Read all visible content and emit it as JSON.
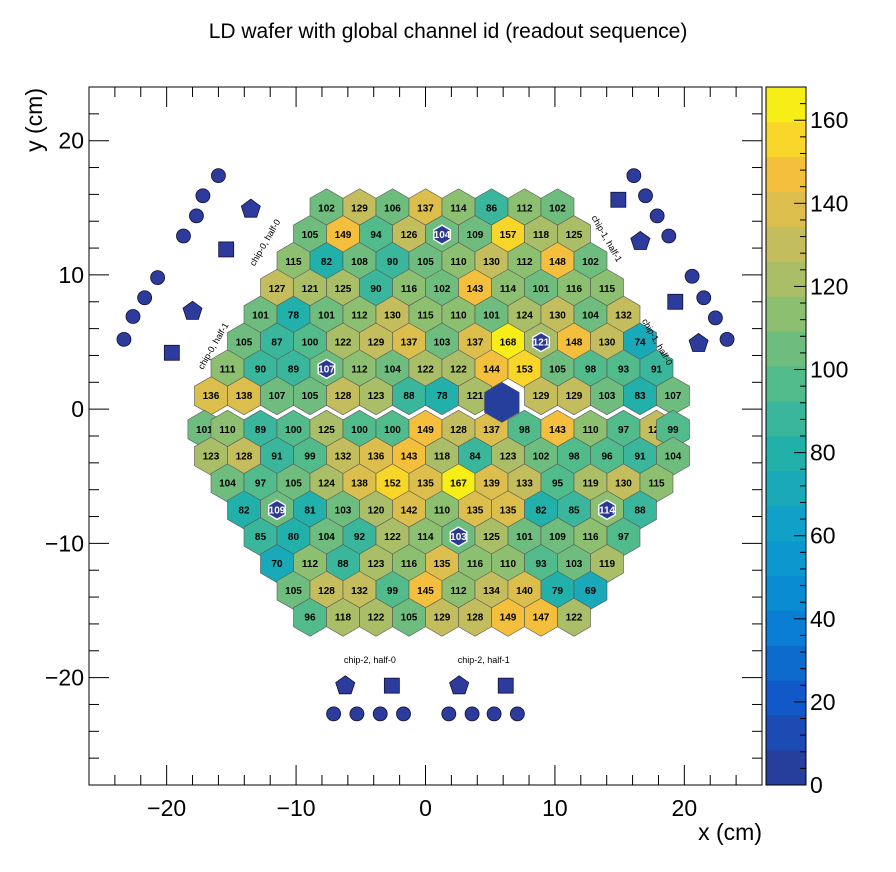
{
  "chart_data": {
    "type": "heatmap",
    "title": "LD wafer with global channel id (readout sequence)",
    "xlabel": "x (cm)",
    "ylabel": "y (cm)",
    "xlim": [
      -26,
      26
    ],
    "ylim": [
      -28,
      24
    ],
    "xticks": [
      "−20",
      "−10",
      "0",
      "10",
      "20"
    ],
    "yticks": [
      "20",
      "10",
      "0",
      "−10",
      "−20"
    ],
    "colorbar": {
      "zlim": [
        0,
        168
      ],
      "ticks": [
        "0",
        "20",
        "40",
        "60",
        "80",
        "100",
        "120",
        "140",
        "160"
      ]
    },
    "hex_grid": {
      "pitch_x": 2.55,
      "pitch_y": 1.998
    },
    "cells": [
      {
        "x": -7.65,
        "y": 15.0,
        "v": 102
      },
      {
        "x": -5.1,
        "y": 15.0,
        "v": 129
      },
      {
        "x": -2.55,
        "y": 15.0,
        "v": 106
      },
      {
        "x": 0.0,
        "y": 15.0,
        "v": 137
      },
      {
        "x": 2.55,
        "y": 15.0,
        "v": 114
      },
      {
        "x": 5.1,
        "y": 15.0,
        "v": 86
      },
      {
        "x": 7.65,
        "y": 15.0,
        "v": 112
      },
      {
        "x": 10.2,
        "y": 15.0,
        "v": 102
      },
      {
        "x": -8.925,
        "y": 13.0,
        "v": 105
      },
      {
        "x": -6.375,
        "y": 13.0,
        "v": 149
      },
      {
        "x": -3.825,
        "y": 13.0,
        "v": 94
      },
      {
        "x": -1.275,
        "y": 13.0,
        "v": 126
      },
      {
        "x": 1.275,
        "y": 13.0,
        "v": 104,
        "special": true
      },
      {
        "x": 3.825,
        "y": 13.0,
        "v": 109
      },
      {
        "x": 6.375,
        "y": 13.0,
        "v": 157
      },
      {
        "x": 8.925,
        "y": 13.0,
        "v": 118
      },
      {
        "x": 11.475,
        "y": 13.0,
        "v": 125
      },
      {
        "x": -10.2,
        "y": 11.0,
        "v": 115
      },
      {
        "x": -7.65,
        "y": 11.0,
        "v": 82
      },
      {
        "x": -5.1,
        "y": 11.0,
        "v": 108
      },
      {
        "x": -2.55,
        "y": 11.0,
        "v": 90
      },
      {
        "x": 0.0,
        "y": 11.0,
        "v": 105
      },
      {
        "x": 2.55,
        "y": 11.0,
        "v": 110
      },
      {
        "x": 5.1,
        "y": 11.0,
        "v": 130
      },
      {
        "x": 7.65,
        "y": 11.0,
        "v": 112
      },
      {
        "x": 10.2,
        "y": 11.0,
        "v": 148
      },
      {
        "x": 12.75,
        "y": 11.0,
        "v": 102
      },
      {
        "x": -11.475,
        "y": 9.0,
        "v": 127
      },
      {
        "x": -8.925,
        "y": 9.0,
        "v": 121
      },
      {
        "x": -6.375,
        "y": 9.0,
        "v": 125
      },
      {
        "x": -3.825,
        "y": 9.0,
        "v": 90
      },
      {
        "x": -1.275,
        "y": 9.0,
        "v": 116
      },
      {
        "x": 1.275,
        "y": 9.0,
        "v": 102
      },
      {
        "x": 3.825,
        "y": 9.0,
        "v": 143
      },
      {
        "x": 6.375,
        "y": 9.0,
        "v": 114
      },
      {
        "x": 8.925,
        "y": 9.0,
        "v": 101
      },
      {
        "x": 11.475,
        "y": 9.0,
        "v": 116
      },
      {
        "x": 14.025,
        "y": 9.0,
        "v": 115
      },
      {
        "x": -12.75,
        "y": 7.0,
        "v": 101
      },
      {
        "x": -10.2,
        "y": 7.0,
        "v": 78
      },
      {
        "x": -7.65,
        "y": 7.0,
        "v": 101
      },
      {
        "x": -5.1,
        "y": 7.0,
        "v": 112
      },
      {
        "x": -2.55,
        "y": 7.0,
        "v": 130
      },
      {
        "x": 0.0,
        "y": 7.0,
        "v": 115
      },
      {
        "x": 2.55,
        "y": 7.0,
        "v": 110
      },
      {
        "x": 5.1,
        "y": 7.0,
        "v": 101
      },
      {
        "x": 7.65,
        "y": 7.0,
        "v": 124
      },
      {
        "x": 10.2,
        "y": 7.0,
        "v": 130
      },
      {
        "x": 12.75,
        "y": 7.0,
        "v": 104
      },
      {
        "x": 15.3,
        "y": 7.0,
        "v": 132
      },
      {
        "x": -14.025,
        "y": 5.0,
        "v": 105
      },
      {
        "x": -11.475,
        "y": 5.0,
        "v": 87
      },
      {
        "x": -8.925,
        "y": 5.0,
        "v": 100
      },
      {
        "x": -6.375,
        "y": 5.0,
        "v": 122
      },
      {
        "x": -3.825,
        "y": 5.0,
        "v": 129
      },
      {
        "x": -1.275,
        "y": 5.0,
        "v": 137
      },
      {
        "x": 1.275,
        "y": 5.0,
        "v": 103
      },
      {
        "x": 3.825,
        "y": 5.0,
        "v": 137
      },
      {
        "x": 6.375,
        "y": 5.0,
        "v": 168
      },
      {
        "x": 8.925,
        "y": 5.0,
        "v": 121,
        "special": true
      },
      {
        "x": 11.475,
        "y": 5.0,
        "v": 148
      },
      {
        "x": 14.025,
        "y": 5.0,
        "v": 130
      },
      {
        "x": 16.575,
        "y": 5.0,
        "v": 74
      },
      {
        "x": -15.3,
        "y": 3.0,
        "v": 111
      },
      {
        "x": -12.75,
        "y": 3.0,
        "v": 90
      },
      {
        "x": -10.2,
        "y": 3.0,
        "v": 89
      },
      {
        "x": -7.65,
        "y": 3.0,
        "v": 107,
        "special": true
      },
      {
        "x": -5.1,
        "y": 3.0,
        "v": 112
      },
      {
        "x": -2.55,
        "y": 3.0,
        "v": 104
      },
      {
        "x": 0.0,
        "y": 3.0,
        "v": 122
      },
      {
        "x": 2.55,
        "y": 3.0,
        "v": 122
      },
      {
        "x": 5.1,
        "y": 3.0,
        "v": 144
      },
      {
        "x": 7.65,
        "y": 3.0,
        "v": 153
      },
      {
        "x": 10.2,
        "y": 3.0,
        "v": 105
      },
      {
        "x": 12.75,
        "y": 3.0,
        "v": 98
      },
      {
        "x": 15.3,
        "y": 3.0,
        "v": 93
      },
      {
        "x": 17.85,
        "y": 3.0,
        "v": 91
      },
      {
        "x": -16.575,
        "y": 1.0,
        "v": 136
      },
      {
        "x": -14.025,
        "y": 1.0,
        "v": 138
      },
      {
        "x": -11.475,
        "y": 1.0,
        "v": 107
      },
      {
        "x": -8.925,
        "y": 1.0,
        "v": 105
      },
      {
        "x": -6.375,
        "y": 1.0,
        "v": 128
      },
      {
        "x": -3.825,
        "y": 1.0,
        "v": 123
      },
      {
        "x": -1.275,
        "y": 1.0,
        "v": 88
      },
      {
        "x": 1.275,
        "y": 1.0,
        "v": 78
      },
      {
        "x": 3.825,
        "y": 1.0,
        "v": 121
      },
      {
        "x": 8.925,
        "y": 1.0,
        "v": 129
      },
      {
        "x": 11.475,
        "y": 1.0,
        "v": 129
      },
      {
        "x": 14.025,
        "y": 1.0,
        "v": 103
      },
      {
        "x": 16.575,
        "y": 1.0,
        "v": 83
      },
      {
        "x": 19.125,
        "y": 1.0,
        "v": 107
      },
      {
        "x": -17.085,
        "y": -1.5,
        "v": 101
      },
      {
        "x": -15.3,
        "y": -1.5,
        "v": 110
      },
      {
        "x": -12.75,
        "y": -1.5,
        "v": 89
      },
      {
        "x": -10.2,
        "y": -1.5,
        "v": 100
      },
      {
        "x": -7.65,
        "y": -1.5,
        "v": 125
      },
      {
        "x": -5.1,
        "y": -1.5,
        "v": 100
      },
      {
        "x": -2.55,
        "y": -1.5,
        "v": 100
      },
      {
        "x": 0.0,
        "y": -1.5,
        "v": 149
      },
      {
        "x": 2.55,
        "y": -1.5,
        "v": 128
      },
      {
        "x": 5.1,
        "y": -1.5,
        "v": 137
      },
      {
        "x": 7.65,
        "y": -1.5,
        "v": 98
      },
      {
        "x": 10.2,
        "y": -1.5,
        "v": 143
      },
      {
        "x": 12.75,
        "y": -1.5,
        "v": 110
      },
      {
        "x": 15.3,
        "y": -1.5,
        "v": 97
      },
      {
        "x": 17.85,
        "y": -1.5,
        "v": 128
      },
      {
        "x": 19.125,
        "y": -1.5,
        "v": 99
      },
      {
        "x": -16.575,
        "y": -3.5,
        "v": 123
      },
      {
        "x": -14.025,
        "y": -3.5,
        "v": 128
      },
      {
        "x": -11.475,
        "y": -3.5,
        "v": 91
      },
      {
        "x": -8.925,
        "y": -3.5,
        "v": 99
      },
      {
        "x": -6.375,
        "y": -3.5,
        "v": 132
      },
      {
        "x": -3.825,
        "y": -3.5,
        "v": 136
      },
      {
        "x": -1.275,
        "y": -3.5,
        "v": 143
      },
      {
        "x": 1.275,
        "y": -3.5,
        "v": 118
      },
      {
        "x": 3.825,
        "y": -3.5,
        "v": 84
      },
      {
        "x": 6.375,
        "y": -3.5,
        "v": 123
      },
      {
        "x": 8.925,
        "y": -3.5,
        "v": 102
      },
      {
        "x": 11.475,
        "y": -3.5,
        "v": 98
      },
      {
        "x": 14.025,
        "y": -3.5,
        "v": 96
      },
      {
        "x": 16.575,
        "y": -3.5,
        "v": 91
      },
      {
        "x": 19.125,
        "y": -3.5,
        "v": 104
      },
      {
        "x": -15.3,
        "y": -5.5,
        "v": 104
      },
      {
        "x": -12.75,
        "y": -5.5,
        "v": 97
      },
      {
        "x": -10.2,
        "y": -5.5,
        "v": 105
      },
      {
        "x": -7.65,
        "y": -5.5,
        "v": 124
      },
      {
        "x": -5.1,
        "y": -5.5,
        "v": 138
      },
      {
        "x": -2.55,
        "y": -5.5,
        "v": 152
      },
      {
        "x": 0.0,
        "y": -5.5,
        "v": 135
      },
      {
        "x": 2.55,
        "y": -5.5,
        "v": 167
      },
      {
        "x": 5.1,
        "y": -5.5,
        "v": 139
      },
      {
        "x": 7.65,
        "y": -5.5,
        "v": 133
      },
      {
        "x": 10.2,
        "y": -5.5,
        "v": 95
      },
      {
        "x": 12.75,
        "y": -5.5,
        "v": 119
      },
      {
        "x": 15.3,
        "y": -5.5,
        "v": 130
      },
      {
        "x": 17.85,
        "y": -5.5,
        "v": 115
      },
      {
        "x": -14.025,
        "y": -7.5,
        "v": 82
      },
      {
        "x": -11.475,
        "y": -7.5,
        "v": 109,
        "special": true
      },
      {
        "x": -8.925,
        "y": -7.5,
        "v": 81
      },
      {
        "x": -6.375,
        "y": -7.5,
        "v": 103
      },
      {
        "x": -3.825,
        "y": -7.5,
        "v": 120
      },
      {
        "x": -1.275,
        "y": -7.5,
        "v": 142
      },
      {
        "x": 1.275,
        "y": -7.5,
        "v": 110
      },
      {
        "x": 3.825,
        "y": -7.5,
        "v": 135
      },
      {
        "x": 6.375,
        "y": -7.5,
        "v": 135
      },
      {
        "x": 8.925,
        "y": -7.5,
        "v": 82
      },
      {
        "x": 11.475,
        "y": -7.5,
        "v": 85
      },
      {
        "x": 14.025,
        "y": -7.5,
        "v": 114,
        "special": true
      },
      {
        "x": 16.575,
        "y": -7.5,
        "v": 88
      },
      {
        "x": -12.75,
        "y": -9.5,
        "v": 85
      },
      {
        "x": -10.2,
        "y": -9.5,
        "v": 80
      },
      {
        "x": -7.65,
        "y": -9.5,
        "v": 104
      },
      {
        "x": -5.1,
        "y": -9.5,
        "v": 92
      },
      {
        "x": -2.55,
        "y": -9.5,
        "v": 122
      },
      {
        "x": 0.0,
        "y": -9.5,
        "v": 114
      },
      {
        "x": 2.55,
        "y": -9.5,
        "v": 103,
        "special": true
      },
      {
        "x": 5.1,
        "y": -9.5,
        "v": 125
      },
      {
        "x": 7.65,
        "y": -9.5,
        "v": 101
      },
      {
        "x": 10.2,
        "y": -9.5,
        "v": 109
      },
      {
        "x": 12.75,
        "y": -9.5,
        "v": 116
      },
      {
        "x": 15.3,
        "y": -9.5,
        "v": 97
      },
      {
        "x": -11.475,
        "y": -11.5,
        "v": 70
      },
      {
        "x": -8.925,
        "y": -11.5,
        "v": 112
      },
      {
        "x": -6.375,
        "y": -11.5,
        "v": 88
      },
      {
        "x": -3.825,
        "y": -11.5,
        "v": 123
      },
      {
        "x": -1.275,
        "y": -11.5,
        "v": 116
      },
      {
        "x": 1.275,
        "y": -11.5,
        "v": 135
      },
      {
        "x": 3.825,
        "y": -11.5,
        "v": 116
      },
      {
        "x": 6.375,
        "y": -11.5,
        "v": 110
      },
      {
        "x": 8.925,
        "y": -11.5,
        "v": 93
      },
      {
        "x": 11.475,
        "y": -11.5,
        "v": 103
      },
      {
        "x": 14.025,
        "y": -11.5,
        "v": 119
      },
      {
        "x": -10.2,
        "y": -13.5,
        "v": 105
      },
      {
        "x": -7.65,
        "y": -13.5,
        "v": 128
      },
      {
        "x": -5.1,
        "y": -13.5,
        "v": 132
      },
      {
        "x": -2.55,
        "y": -13.5,
        "v": 99
      },
      {
        "x": 0.0,
        "y": -13.5,
        "v": 145
      },
      {
        "x": 2.55,
        "y": -13.5,
        "v": 112
      },
      {
        "x": 5.1,
        "y": -13.5,
        "v": 134
      },
      {
        "x": 7.65,
        "y": -13.5,
        "v": 140
      },
      {
        "x": 10.2,
        "y": -13.5,
        "v": 79
      },
      {
        "x": 12.75,
        "y": -13.5,
        "v": 69
      },
      {
        "x": -8.925,
        "y": -15.5,
        "v": 96
      },
      {
        "x": -6.375,
        "y": -15.5,
        "v": 118
      },
      {
        "x": -3.825,
        "y": -15.5,
        "v": 122
      },
      {
        "x": -1.275,
        "y": -15.5,
        "v": 105
      },
      {
        "x": 1.275,
        "y": -15.5,
        "v": 129
      },
      {
        "x": 3.825,
        "y": -15.5,
        "v": 128
      },
      {
        "x": 6.375,
        "y": -15.5,
        "v": 149
      },
      {
        "x": 8.925,
        "y": -15.5,
        "v": 147
      },
      {
        "x": 11.475,
        "y": -15.5,
        "v": 122
      }
    ],
    "center_marker": {
      "x": 5.9,
      "y": 0.5,
      "v": 0
    },
    "chip_labels": [
      {
        "text": "chip-0, half-0",
        "x": -12.2,
        "y": 12.3,
        "angle": -60
      },
      {
        "text": "chip-0, half-1",
        "x": -16.2,
        "y": 4.6,
        "angle": -60
      },
      {
        "text": "chip-1, half-1",
        "x": 13.8,
        "y": 12.6,
        "angle": 60
      },
      {
        "text": "chip-1, half-0",
        "x": 17.7,
        "y": 4.9,
        "angle": 60
      },
      {
        "text": "chip-2, half-0",
        "x": -4.3,
        "y": -18.9,
        "angle": 0
      },
      {
        "text": "chip-2, half-1",
        "x": 4.5,
        "y": -18.9,
        "angle": 0
      }
    ],
    "calib_markers": [
      {
        "shape": "circle",
        "x": -23.3,
        "y": 5.2
      },
      {
        "shape": "circle",
        "x": -22.6,
        "y": 6.9
      },
      {
        "shape": "circle",
        "x": -21.7,
        "y": 8.3
      },
      {
        "shape": "circle",
        "x": -20.7,
        "y": 9.8
      },
      {
        "shape": "circle",
        "x": -18.7,
        "y": 12.9
      },
      {
        "shape": "circle",
        "x": -17.7,
        "y": 14.4
      },
      {
        "shape": "circle",
        "x": -17.2,
        "y": 15.9
      },
      {
        "shape": "circle",
        "x": -16.0,
        "y": 17.4
      },
      {
        "shape": "square",
        "x": -19.6,
        "y": 4.2
      },
      {
        "shape": "square",
        "x": -15.4,
        "y": 11.9
      },
      {
        "shape": "pentagon",
        "x": -18.0,
        "y": 7.3
      },
      {
        "shape": "pentagon",
        "x": -13.5,
        "y": 14.9
      },
      {
        "shape": "circle",
        "x": 16.1,
        "y": 17.4
      },
      {
        "shape": "circle",
        "x": 17.0,
        "y": 15.9
      },
      {
        "shape": "circle",
        "x": 17.9,
        "y": 14.4
      },
      {
        "shape": "circle",
        "x": 18.8,
        "y": 12.9
      },
      {
        "shape": "circle",
        "x": 20.6,
        "y": 9.9
      },
      {
        "shape": "circle",
        "x": 21.5,
        "y": 8.3
      },
      {
        "shape": "circle",
        "x": 22.4,
        "y": 6.8
      },
      {
        "shape": "circle",
        "x": 23.3,
        "y": 5.2
      },
      {
        "shape": "square",
        "x": 14.9,
        "y": 15.6
      },
      {
        "shape": "square",
        "x": 19.3,
        "y": 8.0
      },
      {
        "shape": "pentagon",
        "x": 16.6,
        "y": 12.5
      },
      {
        "shape": "pentagon",
        "x": 21.1,
        "y": 4.9
      },
      {
        "shape": "circle",
        "x": -7.1,
        "y": -22.7
      },
      {
        "shape": "circle",
        "x": -5.3,
        "y": -22.7
      },
      {
        "shape": "circle",
        "x": -3.5,
        "y": -22.7
      },
      {
        "shape": "circle",
        "x": -1.7,
        "y": -22.7
      },
      {
        "shape": "circle",
        "x": 1.8,
        "y": -22.7
      },
      {
        "shape": "circle",
        "x": 3.6,
        "y": -22.7
      },
      {
        "shape": "circle",
        "x": 5.3,
        "y": -22.7
      },
      {
        "shape": "circle",
        "x": 7.1,
        "y": -22.7
      },
      {
        "shape": "pentagon",
        "x": -6.2,
        "y": -20.6
      },
      {
        "shape": "pentagon",
        "x": 2.6,
        "y": -20.6
      },
      {
        "shape": "square",
        "x": -2.6,
        "y": -20.6
      },
      {
        "shape": "square",
        "x": 6.2,
        "y": -20.6
      }
    ]
  }
}
